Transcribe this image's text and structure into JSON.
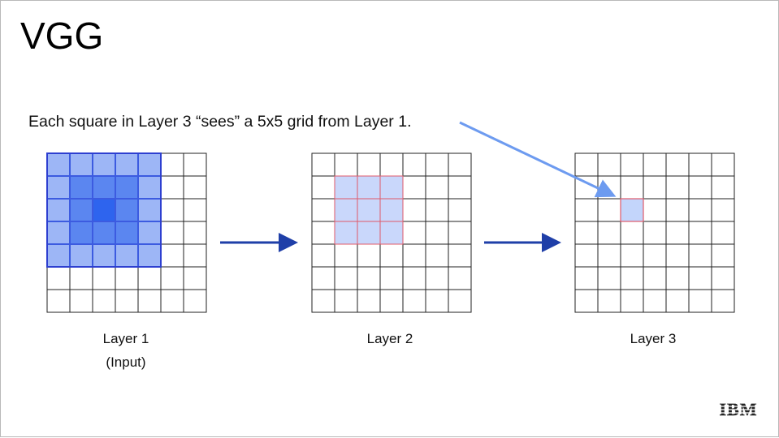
{
  "slide": {
    "title": "VGG",
    "caption": "Each square in Layer 3 “sees” a 5x5 grid from Layer 1.",
    "layers": [
      {
        "name": "Layer 1",
        "subtitle": "(Input)"
      },
      {
        "name": "Layer 2",
        "subtitle": ""
      },
      {
        "name": "Layer 3",
        "subtitle": ""
      }
    ],
    "logo_text": "IBM"
  },
  "colors": {
    "grid_line": "#222222",
    "layer1_frame": "#2d3fd0",
    "layer2_highlight_border": "#e05a6a",
    "layer2_fill": "#c9d7fb",
    "layer3_fill": "#c3d5fb",
    "arrow_dark": "#1f3fa8",
    "arrow_light": "#6d9bf0"
  },
  "grids": {
    "size": 7,
    "layer1_intensity": [
      [
        1,
        1,
        1,
        1,
        1
      ],
      [
        1,
        2,
        2,
        2,
        1
      ],
      [
        1,
        2,
        3,
        2,
        1
      ],
      [
        1,
        2,
        2,
        2,
        1
      ],
      [
        1,
        1,
        1,
        1,
        1
      ]
    ]
  }
}
